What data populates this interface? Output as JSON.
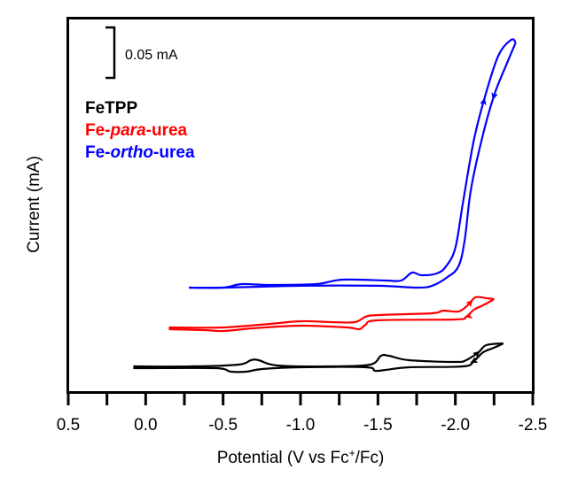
{
  "chart_data": {
    "type": "line",
    "title": "",
    "xlabel": "Potential (V vs Fc+/Fc)",
    "xlabel_parts": {
      "pre": "Potential (V vs Fc",
      "sup": "+",
      "post": "/Fc)"
    },
    "ylabel": "Current (mA)",
    "xlim": [
      0.5,
      -2.5
    ],
    "ylim": [
      0,
      0.371
    ],
    "x_ticks": [
      0.5,
      0.25,
      0.0,
      -0.25,
      -0.5,
      -0.75,
      -1.0,
      -1.25,
      -1.5,
      -1.75,
      -2.0,
      -2.25,
      -2.5
    ],
    "x_tick_labels": [
      "0.5",
      "0.0",
      "-0.5",
      "-1.0",
      "-1.5",
      "-2.0",
      "-2.5"
    ],
    "x_tick_label_values": [
      0.5,
      0.0,
      -0.5,
      -1.0,
      -1.5,
      -2.0,
      -2.5
    ],
    "y_ticks_shown": false,
    "grid": false,
    "scale_bar": {
      "label": "0.05 mA",
      "value": 0.05
    },
    "legend": {
      "placement": "top-left",
      "entries": [
        {
          "parts": [
            {
              "text": "FeTPP",
              "italic": false
            }
          ],
          "color": "#000000"
        },
        {
          "parts": [
            {
              "text": "Fe-",
              "italic": false
            },
            {
              "text": "para",
              "italic": true
            },
            {
              "text": "-urea",
              "italic": false
            }
          ],
          "color": "#ff0000"
        },
        {
          "parts": [
            {
              "text": "Fe-",
              "italic": false
            },
            {
              "text": "ortho",
              "italic": true
            },
            {
              "text": "-urea",
              "italic": false
            }
          ],
          "color": "#0000ff"
        }
      ]
    },
    "series": [
      {
        "name": "FeTPP",
        "color": "#000000",
        "forward": [
          [
            0.08,
            0.0254
          ],
          [
            -0.3,
            0.0254
          ],
          [
            -0.6,
            0.0272
          ],
          [
            -0.68,
            0.0316
          ],
          [
            -0.73,
            0.0316
          ],
          [
            -0.85,
            0.0263
          ],
          [
            -1.2,
            0.0254
          ],
          [
            -1.45,
            0.0272
          ],
          [
            -1.52,
            0.036
          ],
          [
            -1.57,
            0.036
          ],
          [
            -1.7,
            0.0316
          ],
          [
            -2.0,
            0.0298
          ],
          [
            -2.07,
            0.0316
          ],
          [
            -2.15,
            0.0395
          ],
          [
            -2.2,
            0.0465
          ],
          [
            -2.31,
            0.0482
          ]
        ],
        "reverse": [
          [
            -2.31,
            0.0482
          ],
          [
            -2.25,
            0.0439
          ],
          [
            -2.18,
            0.0395
          ],
          [
            -2.12,
            0.0307
          ],
          [
            -2.05,
            0.0254
          ],
          [
            -1.7,
            0.0246
          ],
          [
            -1.55,
            0.0219
          ],
          [
            -1.48,
            0.0211
          ],
          [
            -1.42,
            0.0246
          ],
          [
            -1.0,
            0.0246
          ],
          [
            -0.75,
            0.0228
          ],
          [
            -0.65,
            0.0202
          ],
          [
            -0.55,
            0.0202
          ],
          [
            -0.45,
            0.0237
          ],
          [
            0.0,
            0.0237
          ],
          [
            0.08,
            0.0237
          ]
        ]
      },
      {
        "name": "Fe-para-urea",
        "color": "#ff0000",
        "forward": [
          [
            -0.15,
            0.064
          ],
          [
            -0.5,
            0.064
          ],
          [
            -0.8,
            0.0675
          ],
          [
            -1.0,
            0.0702
          ],
          [
            -1.2,
            0.0693
          ],
          [
            -1.35,
            0.0693
          ],
          [
            -1.42,
            0.0746
          ],
          [
            -1.5,
            0.0763
          ],
          [
            -1.85,
            0.0781
          ],
          [
            -1.92,
            0.0807
          ],
          [
            -2.02,
            0.0798
          ],
          [
            -2.08,
            0.086
          ],
          [
            -2.13,
            0.0939
          ],
          [
            -2.2,
            0.093
          ],
          [
            -2.25,
            0.0921
          ]
        ],
        "reverse": [
          [
            -2.25,
            0.0921
          ],
          [
            -2.18,
            0.086
          ],
          [
            -2.12,
            0.0816
          ],
          [
            -2.07,
            0.0746
          ],
          [
            -2.0,
            0.0719
          ],
          [
            -1.5,
            0.0711
          ],
          [
            -1.42,
            0.0667
          ],
          [
            -1.38,
            0.0623
          ],
          [
            -1.3,
            0.064
          ],
          [
            -1.0,
            0.0658
          ],
          [
            -0.7,
            0.0632
          ],
          [
            -0.5,
            0.0605
          ],
          [
            -0.38,
            0.0614
          ],
          [
            -0.15,
            0.0623
          ]
        ]
      },
      {
        "name": "Fe-ortho-urea",
        "color": "#0000ff",
        "forward": [
          [
            -0.28,
            0.1035
          ],
          [
            -0.5,
            0.1035
          ],
          [
            -0.62,
            0.107
          ],
          [
            -0.8,
            0.1061
          ],
          [
            -1.1,
            0.107
          ],
          [
            -1.27,
            0.1114
          ],
          [
            -1.55,
            0.1105
          ],
          [
            -1.65,
            0.1105
          ],
          [
            -1.72,
            0.1184
          ],
          [
            -1.78,
            0.1158
          ],
          [
            -1.88,
            0.1175
          ],
          [
            -1.94,
            0.1246
          ],
          [
            -2.0,
            0.143
          ],
          [
            -2.05,
            0.1886
          ],
          [
            -2.12,
            0.25
          ],
          [
            -2.2,
            0.2974
          ],
          [
            -2.28,
            0.3342
          ],
          [
            -2.36,
            0.3491
          ],
          [
            -2.39,
            0.3465
          ]
        ],
        "reverse": [
          [
            -2.39,
            0.3465
          ],
          [
            -2.33,
            0.3246
          ],
          [
            -2.25,
            0.2939
          ],
          [
            -2.17,
            0.25
          ],
          [
            -2.1,
            0.2
          ],
          [
            -2.06,
            0.15
          ],
          [
            -2.02,
            0.1246
          ],
          [
            -1.95,
            0.114
          ],
          [
            -1.85,
            0.1053
          ],
          [
            -1.75,
            0.1035
          ],
          [
            -1.5,
            0.1053
          ],
          [
            -1.0,
            0.1053
          ],
          [
            -0.5,
            0.1035
          ],
          [
            -0.28,
            0.1035
          ]
        ]
      }
    ]
  }
}
